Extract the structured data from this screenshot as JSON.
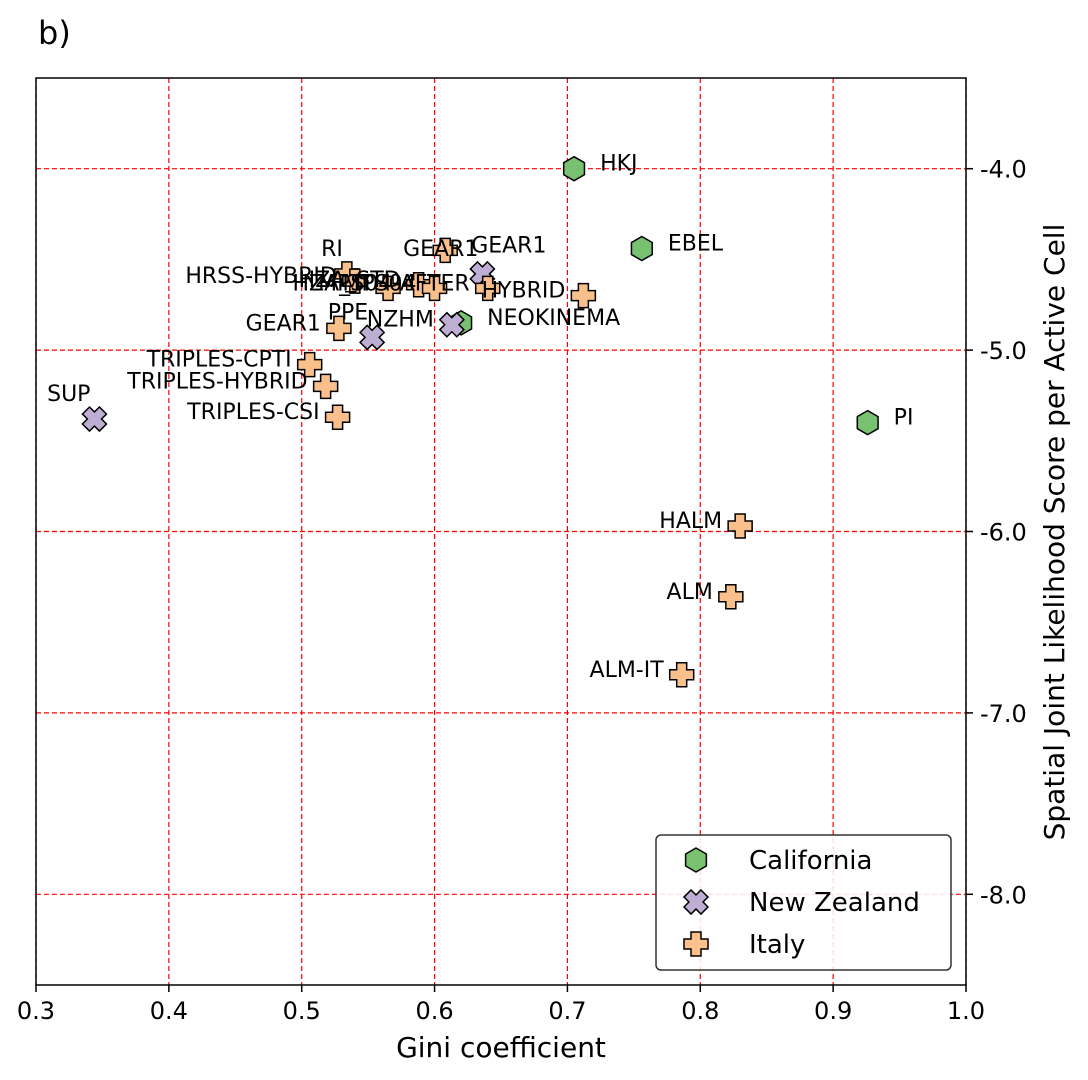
{
  "panel_label": "b)",
  "chart_data": {
    "type": "scatter",
    "xlabel": "Gini coefficient",
    "ylabel": "Spatial Joint Likelihood Score per Active Cell",
    "xlim": [
      0.3,
      1.0
    ],
    "ylim": [
      -8.5,
      -3.5
    ],
    "x_ticks": [
      0.3,
      0.4,
      0.5,
      0.6,
      0.7,
      0.8,
      0.9,
      1.0
    ],
    "x_tick_labels": [
      "0.3",
      "0.4",
      "0.5",
      "0.6",
      "0.7",
      "0.8",
      "0.9",
      "1.0"
    ],
    "y_ticks": [
      -4.0,
      -5.0,
      -6.0,
      -7.0,
      -8.0
    ],
    "y_tick_labels": [
      "-4.0",
      "-5.0",
      "-6.0",
      "-7.0",
      "-8.0"
    ],
    "y_axis_side": "right",
    "grid": true,
    "grid_color": "#ff0000",
    "legend_position": "bottom-right",
    "series": [
      {
        "name": "California",
        "marker": "hexagon",
        "color": "#77c170",
        "points": [
          {
            "x": 0.705,
            "y": -4.0,
            "label": "HKJ",
            "label_side": "right"
          },
          {
            "x": 0.756,
            "y": -4.44,
            "label": "EBEL",
            "label_side": "right"
          },
          {
            "x": 0.62,
            "y": -4.85,
            "label": "NEOKINEMA",
            "label_side": "right"
          },
          {
            "x": 0.926,
            "y": -5.4,
            "label": "PI",
            "label_side": "right"
          }
        ]
      },
      {
        "name": "New Zealand",
        "marker": "x",
        "color": "#bfaed4",
        "points": [
          {
            "x": 0.636,
            "y": -4.58,
            "label": "GEAR1",
            "label_side": "above-left"
          },
          {
            "x": 0.613,
            "y": -4.86,
            "label": "NZHM",
            "label_side": "left"
          },
          {
            "x": 0.553,
            "y": -4.93,
            "label": "PPE",
            "label_side": "above-left"
          },
          {
            "x": 0.344,
            "y": -5.38,
            "label": "SUP",
            "label_side": "above-left"
          }
        ]
      },
      {
        "name": "Italy",
        "marker": "plus",
        "color": "#f9c08b",
        "points": [
          {
            "x": 0.608,
            "y": -4.45,
            "label": "GEAR1",
            "label_side": "right"
          },
          {
            "x": 0.534,
            "y": -4.58,
            "label": "RI",
            "label_side": "above-left"
          },
          {
            "x": 0.54,
            "y": -4.62,
            "label": "HRSS-HYBRID",
            "label_side": "left"
          },
          {
            "x": 0.565,
            "y": -4.66,
            "label": "HZA_TI",
            "label_side": "left"
          },
          {
            "x": 0.588,
            "y": -4.64,
            "label": "HZA_STD",
            "label_side": "left"
          },
          {
            "x": 0.6,
            "y": -4.66,
            "label": "MPS04",
            "label_side": "left"
          },
          {
            "x": 0.64,
            "y": -4.66,
            "label": "MPS04-AFTER",
            "label_side": "left"
          },
          {
            "x": 0.712,
            "y": -4.7,
            "label": "HYBRID",
            "label_side": "left"
          },
          {
            "x": 0.528,
            "y": -4.88,
            "label": "GEAR1",
            "label_side": "left"
          },
          {
            "x": 0.506,
            "y": -5.08,
            "label": "TRIPLES-CPTI",
            "label_side": "left"
          },
          {
            "x": 0.518,
            "y": -5.2,
            "label": "TRIPLES-HYBRID",
            "label_side": "left"
          },
          {
            "x": 0.527,
            "y": -5.37,
            "label": "TRIPLES-CSI",
            "label_side": "left"
          },
          {
            "x": 0.83,
            "y": -5.97,
            "label": "HALM",
            "label_side": "left"
          },
          {
            "x": 0.823,
            "y": -6.36,
            "label": "ALM",
            "label_side": "left"
          },
          {
            "x": 0.786,
            "y": -6.79,
            "label": "ALM-IT",
            "label_side": "left"
          }
        ]
      }
    ]
  }
}
